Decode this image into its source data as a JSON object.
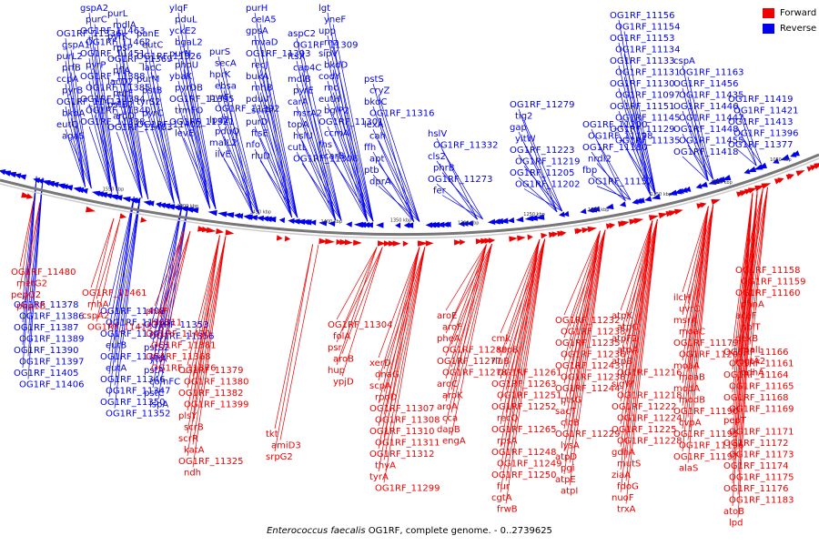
{
  "caption": {
    "organism": "Enterococcus faecalis",
    "rest": " OG1RF, complete genome. - 0..2739625"
  },
  "legend": [
    {
      "label": "Forward",
      "color": "#ee0000"
    },
    {
      "label": "Reverse",
      "color": "#0000ee"
    }
  ],
  "colors": {
    "forward": "#ee0000",
    "reverse": "#0000ee",
    "backbone": "#888888"
  },
  "scale_ticks": [
    "1050 kbp",
    "1100 kbp",
    "1150 kbp",
    "1200 kbp",
    "1250 kbp",
    "1300 kbp",
    "1350 kbp",
    "1400 kbp",
    "1450 kbp",
    "1500 kbp",
    "1550 kbp"
  ],
  "reverse_labels": [
    "gspA2",
    "purC",
    "OG1RF_11463",
    "OG1RF_11462",
    "OG1RF_11451",
    "pyrP",
    "OG1RF_11388",
    "OG1RF_11385",
    "OG1RF_11384",
    "OG1RF_11340",
    "OG1RF_11338",
    "OG1RF_11336",
    "gspA1",
    "purL2",
    "prfB",
    "ccpA",
    "pyrB",
    "OG1RF_11412",
    "bkdA",
    "eutQ",
    "agaS",
    "purL",
    "mdlA",
    "pyrK",
    "rpsP",
    "OG1RF_11369",
    "pflA",
    "lacD2",
    "purF",
    "pstB2",
    "aroD",
    "OG1RF_11403",
    "panE",
    "eutC",
    "OG1RF_11326",
    "lacC",
    "purM",
    "pstB",
    "tyrS2",
    "pyrC",
    "OG1RF_11402",
    "ylqF",
    "pduL",
    "yckE2",
    "bgaL2",
    "purN",
    "phoU",
    "ybaK",
    "pyrDB",
    "OG1RF_11395",
    "trmFO",
    "OG1RF_11321",
    "levE",
    "purS",
    "secA",
    "hprK",
    "ebsa",
    "pyrF",
    "OG1RF_11392",
    "lpd2",
    "pduQ",
    "malL2",
    "ilvE",
    "purH",
    "celA5",
    "gpsA",
    "mvaD",
    "OG1RF_11393",
    "recJ",
    "bukA",
    "rnhB",
    "pduV",
    "scrA",
    "purD",
    "ftsE",
    "nfo",
    "rluD",
    "aspC2",
    "OG1RF_11309",
    "ftsX",
    "cap4C",
    "mdlB",
    "pyrE",
    "carA",
    "msrA2",
    "topA",
    "hslU",
    "cutL",
    "OG1RF_11306",
    "lgt",
    "yneF",
    "upp",
    "rnz",
    "sipV",
    "bkdD",
    "codY",
    "rnc",
    "eutH",
    "bglP2",
    "OG1RF_11301",
    "ccmA",
    "fhs",
    "carB",
    "pstS",
    "cryZ",
    "bkdC",
    "OG1RF_11316",
    "lexA",
    "cah",
    "ffh",
    "apt",
    "ptb",
    "dprA",
    "hslV",
    "OG1RF_11332",
    "cls2",
    "phrB",
    "OG1RF_11273",
    "fer",
    "OG1RF_11279",
    "tig2",
    "gap",
    "yitW",
    "OG1RF_11223",
    "OG1RF_11219",
    "OG1RF_11205",
    "OG1RF_11202",
    "OG1RF_11200",
    "OG1RF_11198",
    "OG1RF_11180",
    "nrdI2",
    "fbp",
    "OG1RF_11157",
    "OG1RF_11156",
    "OG1RF_11154",
    "OG1RF_11153",
    "OG1RF_11134",
    "OG1RF_11133",
    "OG1RF_11131",
    "OG1RF_11130",
    "OG1RF_11097",
    "OG1RF_11151",
    "OG1RF_11145",
    "OG1RF_11129",
    "OG1RF_11135",
    "cspA",
    "OG1RF_11163",
    "OG1RF_11456",
    "OG1RF_11435",
    "OG1RF_11446",
    "OG1RF_11447",
    "OG1RF_11448",
    "OG1RF_11455",
    "OG1RF_11418",
    "OG1RF_11419",
    "OG1RF_11421",
    "OG1RF_11413",
    "OG1RF_11396",
    "OG1RF_11377",
    "OG1RF_11378",
    "OG1RF_11386",
    "OG1RF_11387",
    "OG1RF_11389",
    "OG1RF_11390",
    "OG1RF_11397",
    "OG1RF_11405",
    "OG1RF_11406",
    "OG1RF_11408",
    "OG1RF_11363",
    "OG1RF_11341",
    "eutB",
    "OG1RF_11354",
    "eutA",
    "OG1RF_11346",
    "OG1RF_11347",
    "OG1RF_11350",
    "OG1RF_11352",
    "OG1RF_11353",
    "OG1RF_11356",
    "pstS2",
    "ytiA",
    "pstA",
    "comFC",
    "pstC",
    "lspA"
  ],
  "forward_labels": [
    "OG1RF_11480",
    "metG2",
    "pepQ2",
    "pbp1B",
    "OG1RF_11461",
    "rnhA",
    "cspA2",
    "OG1RF_11415",
    "phoP",
    "hly111",
    "OG1RF_11420",
    "OG1RF_11381",
    "OG1RF_11368",
    "OG1RF_11376",
    "OG1RF_11379",
    "OG1RF_11380",
    "OG1RF_11382",
    "OG1RF_11399",
    "plsY",
    "scrB",
    "scrR",
    "katA",
    "OG1RF_11325",
    "ndh",
    "tkt",
    "amiD3",
    "srpG2",
    "OG1RF_11304",
    "folA",
    "psr",
    "aroB",
    "hup",
    "ypjD",
    "xerD",
    "dnaG",
    "scpA",
    "rpoD",
    "OG1RF_11307",
    "OG1RF_11308",
    "OG1RF_11310",
    "OG1RF_11311",
    "OG1RF_11312",
    "thyA",
    "tyrA",
    "OG1RF_11299",
    "aroE",
    "aroF",
    "pheA",
    "OG1RF_11289",
    "OG1RF_11277",
    "OG1RF_11278",
    "aroC",
    "aroK",
    "aroA",
    "cca",
    "dapB",
    "engA",
    "cmk",
    "scpB",
    "rluB",
    "OG1RF_11261",
    "OG1RF_11263",
    "OG1RF_11251",
    "OG1RF_11252",
    "recQ",
    "OG1RF_11265",
    "rpsA",
    "OG1RF_11248",
    "OG1RF_11249",
    "OG1RF_11250",
    "fur",
    "cgtA",
    "frwB",
    "OG1RF_11232",
    "OG1RF_11233",
    "OG1RF_11235",
    "OG1RF_11236",
    "OG1RF_11243",
    "OG1RF_11238",
    "OG1RF_11244",
    "ptsG",
    "sacT",
    "clcB",
    "OG1RF_11229",
    "lysA",
    "atpD",
    "pgi",
    "atpE",
    "atpI",
    "atpK",
    "atpC",
    "atpF2",
    "atpA",
    "atpB",
    "OG1RF_11216",
    "sigW",
    "OG1RF_11218",
    "OG1RF_11222",
    "OG1RF_11224",
    "OG1RF_11225",
    "OG1RF_11228",
    "gdhA",
    "mutS",
    "ziaA",
    "fdoG",
    "nuoF",
    "trxA",
    "ilcH",
    "uvrC",
    "msrA",
    "moaC",
    "OG1RF_11179",
    "OG1RF_11207",
    "moaA",
    "moaB",
    "modA",
    "modB",
    "OG1RF_11190",
    "cvpA",
    "OG1RF_11195",
    "OG1RF_11196",
    "OG1RF_11197",
    "alaS",
    "OG1RF_11166",
    "OG1RF_11161",
    "OG1RF_11164",
    "OG1RF_11165",
    "OG1RF_11168",
    "OG1RF_11169",
    "pepT",
    "OG1RF_11171",
    "OG1RF_11172",
    "OG1RF_11173",
    "OG1RF_11174",
    "OG1RF_11175",
    "OG1RF_11176",
    "OG1RF_11183",
    "atoB",
    "lpd",
    "OG1RF_11158",
    "OG1RF_11159",
    "OG1RF_11160",
    "phnA",
    "aceF",
    "nplT",
    "dexB",
    "malL",
    "mgtA2",
    "pdhA",
    "pdhB",
    "gldA",
    "OG1RF_11147",
    "dhaK"
  ]
}
